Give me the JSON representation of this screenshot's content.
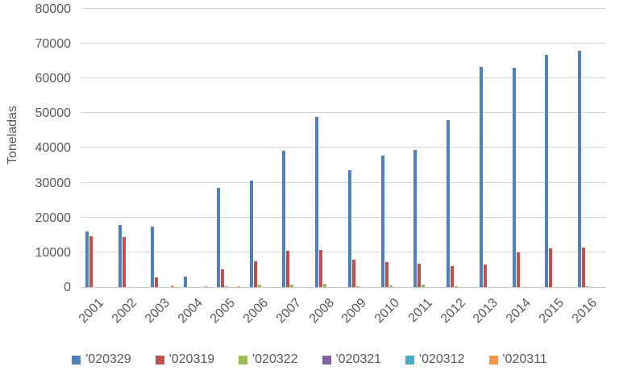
{
  "chart_data": {
    "type": "bar",
    "title": "",
    "xlabel": "",
    "ylabel": "Toneladas",
    "ylim": [
      0,
      80000
    ],
    "yticks": [
      0,
      10000,
      20000,
      30000,
      40000,
      50000,
      60000,
      70000,
      80000
    ],
    "grid": true,
    "legend_position": "bottom",
    "categories": [
      "2001",
      "2002",
      "2003",
      "2004",
      "2005",
      "2006",
      "2007",
      "2008",
      "2009",
      "2010",
      "2011",
      "2012",
      "2013",
      "2014",
      "2015",
      "2016"
    ],
    "series": [
      {
        "name": "'020329",
        "color": "#4f81bd",
        "values": [
          16000,
          17900,
          17300,
          3100,
          28500,
          30600,
          39300,
          49000,
          33700,
          37800,
          39500,
          48100,
          63400,
          63100,
          66700,
          68000
        ]
      },
      {
        "name": "'020319",
        "color": "#c0504d",
        "values": [
          14500,
          14400,
          2800,
          0,
          5100,
          7400,
          10400,
          10700,
          7900,
          7100,
          6700,
          6100,
          6600,
          10000,
          11200,
          11400
        ]
      },
      {
        "name": "'020322",
        "color": "#9bbb59",
        "values": [
          0,
          0,
          0,
          0,
          200,
          600,
          700,
          900,
          300,
          400,
          700,
          300,
          0,
          0,
          0,
          300
        ]
      },
      {
        "name": "'020321",
        "color": "#8064a2",
        "values": [
          0,
          0,
          0,
          0,
          0,
          0,
          0,
          0,
          0,
          0,
          0,
          0,
          0,
          0,
          0,
          0
        ]
      },
      {
        "name": "'020312",
        "color": "#4bacc6",
        "values": [
          0,
          0,
          0,
          0,
          0,
          0,
          0,
          0,
          0,
          0,
          0,
          0,
          0,
          0,
          0,
          0
        ]
      },
      {
        "name": "'020311",
        "color": "#f79646",
        "values": [
          0,
          0,
          400,
          200,
          300,
          0,
          0,
          0,
          0,
          0,
          0,
          0,
          0,
          0,
          0,
          0
        ]
      }
    ]
  },
  "colors": {
    "gridline": "#d9d9d9",
    "axis_line": "#c9c9c9",
    "text": "#595959",
    "background": "#ffffff"
  }
}
